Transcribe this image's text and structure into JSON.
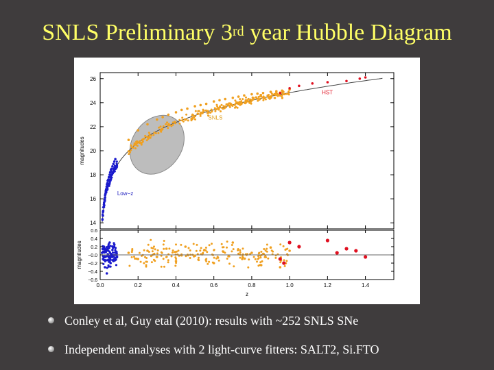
{
  "slide": {
    "title_prefix": "SNLS Preliminary 3",
    "title_sup": "rd",
    "title_suffix": " year Hubble Diagram",
    "bullets": [
      "Conley et al, Guy etal (2010): results with ~252 SNLS SNe",
      "Independent analyses with 2 light-curve fitters: SALT2, Si.FTO"
    ]
  },
  "colors": {
    "background": "#3f3c3d",
    "title": "#ffff66",
    "lowz": "#1a1acc",
    "snls": "#f0a020",
    "hst": "#e01020",
    "label_snls": "#e0a020",
    "label_hst": "#e01020",
    "label_lowz": "#2020c0"
  },
  "chart_data": [
    {
      "type": "scatter",
      "title": "",
      "xlabel": "",
      "ylabel": "magnitudes",
      "xlim": [
        0,
        1.55
      ],
      "ylim": [
        13.5,
        26.5
      ],
      "yticks": [
        "14",
        "16",
        "18",
        "20",
        "22",
        "24",
        "26"
      ],
      "annotations": {
        "lowz": "Low−z",
        "snls": "SNLS",
        "hst": "HST"
      },
      "fit_curve": "Hubble relation (model)",
      "series": [
        {
          "name": "Low-z",
          "color": "#1a1acc",
          "x": [
            0.012,
            0.014,
            0.015,
            0.016,
            0.018,
            0.02,
            0.021,
            0.023,
            0.025,
            0.026,
            0.028,
            0.03,
            0.032,
            0.034,
            0.036,
            0.038,
            0.04,
            0.043,
            0.046,
            0.05,
            0.053,
            0.057,
            0.06,
            0.065,
            0.07,
            0.075,
            0.08
          ],
          "y": [
            14.3,
            14.6,
            14.9,
            15.0,
            15.3,
            15.5,
            15.7,
            15.9,
            16.1,
            16.3,
            16.4,
            16.7,
            16.8,
            17.0,
            17.2,
            17.3,
            17.5,
            17.6,
            17.8,
            18.0,
            18.2,
            18.4,
            18.5,
            18.7,
            18.9,
            19.1,
            19.3
          ]
        },
        {
          "name": "SNLS",
          "color": "#f0a020",
          "x": [
            0.15,
            0.2,
            0.25,
            0.3,
            0.33,
            0.36,
            0.4,
            0.43,
            0.46,
            0.5,
            0.53,
            0.56,
            0.6,
            0.63,
            0.66,
            0.7,
            0.73,
            0.76,
            0.8,
            0.83,
            0.86,
            0.9,
            0.93,
            0.96,
            1.0
          ],
          "y": [
            20.9,
            21.7,
            22.2,
            22.6,
            22.8,
            23.0,
            23.2,
            23.4,
            23.5,
            23.7,
            23.8,
            23.9,
            24.1,
            24.2,
            24.3,
            24.4,
            24.5,
            24.6,
            24.7,
            24.75,
            24.8,
            24.9,
            24.95,
            25.0,
            25.1
          ]
        },
        {
          "name": "HST",
          "color": "#e01020",
          "x": [
            0.95,
            1.0,
            1.05,
            1.12,
            1.2,
            1.3,
            1.37,
            1.4
          ],
          "y": [
            24.8,
            25.2,
            25.4,
            25.6,
            25.7,
            25.8,
            26.0,
            26.1
          ]
        }
      ]
    },
    {
      "type": "scatter",
      "title": "",
      "xlabel": "z",
      "ylabel": "magnitudes",
      "xlim": [
        0,
        1.55
      ],
      "ylim": [
        -0.6,
        0.6
      ],
      "xticks": [
        "0.0",
        "0.2",
        "0.4",
        "0.6",
        "0.8",
        "1.0",
        "1.2",
        "1.4"
      ],
      "yticks": [
        "−0.6",
        "−0.4",
        "−0.2",
        "−0.0",
        "0.2",
        "0.4",
        "0.6"
      ],
      "series": [
        {
          "name": "Low-z",
          "color": "#1a1acc",
          "x": [
            0.01,
            0.015,
            0.02,
            0.025,
            0.03,
            0.035,
            0.04,
            0.045,
            0.05,
            0.055,
            0.06,
            0.065,
            0.07,
            0.075,
            0.08
          ],
          "y": [
            0.05,
            -0.1,
            0.2,
            -0.3,
            0.1,
            -0.45,
            0.15,
            -0.05,
            0.3,
            -0.2,
            0.0,
            0.12,
            -0.15,
            0.25,
            -0.08
          ]
        },
        {
          "name": "SNLS",
          "color": "#f0a020",
          "x": [
            0.15,
            0.2,
            0.25,
            0.3,
            0.35,
            0.4,
            0.45,
            0.5,
            0.55,
            0.6,
            0.65,
            0.7,
            0.75,
            0.8,
            0.85,
            0.9,
            0.95,
            1.0
          ],
          "y": [
            0.05,
            -0.1,
            0.1,
            -0.05,
            0.15,
            -0.15,
            0.2,
            -0.02,
            0.12,
            -0.2,
            0.08,
            0.3,
            -0.1,
            0.05,
            -0.25,
            0.18,
            -0.3,
            0.1
          ]
        },
        {
          "name": "HST",
          "color": "#e01020",
          "x": [
            0.95,
            0.97,
            1.0,
            1.05,
            1.2,
            1.25,
            1.3,
            1.35,
            1.4
          ],
          "y": [
            -0.1,
            -0.2,
            0.3,
            0.2,
            0.35,
            0.05,
            0.15,
            0.1,
            -0.05
          ]
        }
      ]
    }
  ]
}
